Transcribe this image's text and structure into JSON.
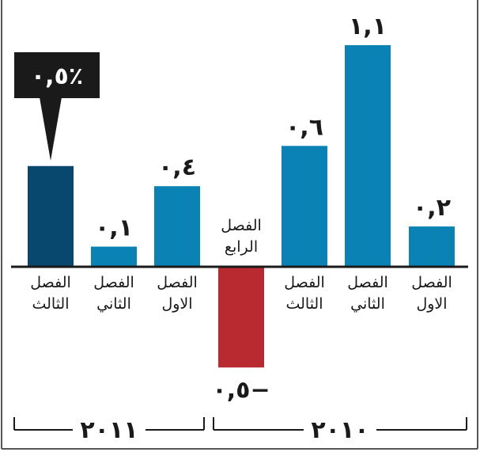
{
  "chart_data": {
    "type": "bar",
    "ylim": [
      -0.5,
      1.1
    ],
    "grid": false,
    "highlight_label": "٠,٥٪",
    "categories": [
      "الفصل الاول",
      "الفصل الثاني",
      "الفصل الثالث",
      "الفصل الرابع",
      "الفصل الاول",
      "الفصل الثاني",
      "الفصل الثالث"
    ],
    "category_lines": [
      [
        "الفصل",
        "الاول"
      ],
      [
        "الفصل",
        "الثاني"
      ],
      [
        "الفصل",
        "الثالث"
      ],
      [
        "الفصل",
        "الرابع"
      ],
      [
        "الفصل",
        "الاول"
      ],
      [
        "الفصل",
        "الثاني"
      ],
      [
        "الفصل",
        "الثالث"
      ]
    ],
    "values": [
      0.2,
      1.1,
      0.6,
      -0.5,
      0.4,
      0.1,
      0.5
    ],
    "value_labels": [
      "٠,٢",
      "١,١",
      "٠,٦",
      "٠,٥−",
      "٠,٤",
      "٠,١",
      ""
    ],
    "groups": [
      {
        "label": "٢٠١٠",
        "start": 0,
        "end": 3
      },
      {
        "label": "٢٠١١",
        "start": 4,
        "end": 6
      }
    ],
    "colors": {
      "positive": "#0a82b4",
      "negative": "#b82a30",
      "highlight": "#08486f",
      "callout": "#1a1a1a",
      "axis": "#1a1a1a",
      "frame": "#555555"
    }
  }
}
